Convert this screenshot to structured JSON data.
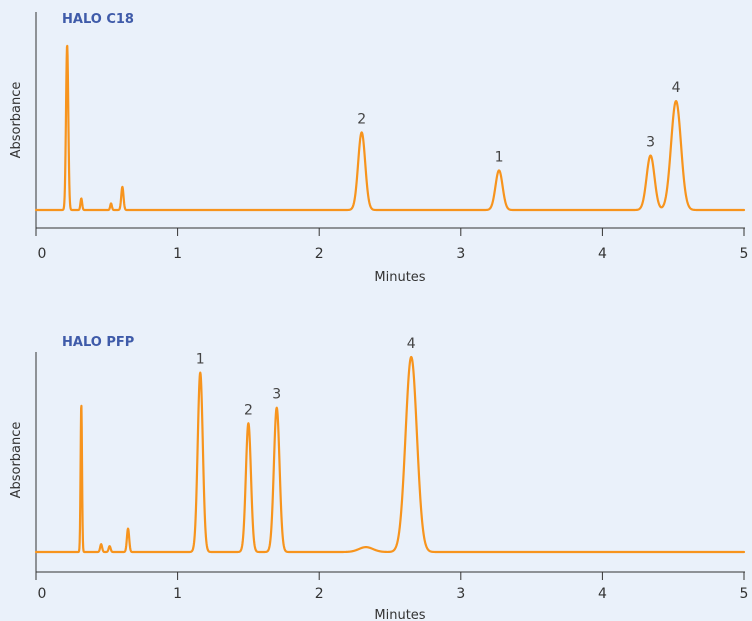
{
  "chart_data": [
    {
      "type": "line",
      "title": "HALO C18",
      "xlabel": "Minutes",
      "ylabel": "Absorbance",
      "xlim": [
        0,
        5
      ],
      "x_ticks": [
        "0",
        "1",
        "2",
        "3",
        "4",
        "5"
      ],
      "y_ticks_shown": false,
      "grid": false,
      "series": [
        {
          "color": "#f7941d",
          "peaks": [
            {
              "t": 0.22,
              "height": 1.0,
              "width": 0.008
            },
            {
              "t": 0.32,
              "height": 0.07,
              "width": 0.006
            },
            {
              "t": 0.53,
              "height": 0.04,
              "width": 0.006
            },
            {
              "t": 0.61,
              "height": 0.14,
              "width": 0.008
            },
            {
              "t": 2.3,
              "height": 0.47,
              "width": 0.025
            },
            {
              "t": 3.27,
              "height": 0.24,
              "width": 0.025
            },
            {
              "t": 4.34,
              "height": 0.33,
              "width": 0.028
            },
            {
              "t": 4.52,
              "height": 0.66,
              "width": 0.035
            }
          ]
        }
      ],
      "peak_labels": [
        {
          "text": "2",
          "t": 2.3,
          "height": 0.47
        },
        {
          "text": "1",
          "t": 3.27,
          "height": 0.24
        },
        {
          "text": "3",
          "t": 4.34,
          "height": 0.33
        },
        {
          "text": "4",
          "t": 4.52,
          "height": 0.66
        }
      ]
    },
    {
      "type": "line",
      "title": "HALO PFP",
      "xlabel": "Minutes",
      "ylabel": "Absorbance",
      "xlim": [
        0,
        5
      ],
      "x_ticks": [
        "0",
        "1",
        "2",
        "3",
        "4",
        "5"
      ],
      "y_ticks_shown": false,
      "grid": false,
      "series": [
        {
          "color": "#f7941d",
          "peaks": [
            {
              "t": 0.32,
              "height": 0.76,
              "width": 0.005
            },
            {
              "t": 0.46,
              "height": 0.04,
              "width": 0.007
            },
            {
              "t": 0.52,
              "height": 0.03,
              "width": 0.007
            },
            {
              "t": 0.65,
              "height": 0.12,
              "width": 0.008
            },
            {
              "t": 1.16,
              "height": 0.92,
              "width": 0.018
            },
            {
              "t": 1.5,
              "height": 0.66,
              "width": 0.018
            },
            {
              "t": 1.7,
              "height": 0.74,
              "width": 0.02
            },
            {
              "t": 2.33,
              "height": 0.025,
              "width": 0.05
            },
            {
              "t": 2.65,
              "height": 1.0,
              "width": 0.04
            }
          ]
        }
      ],
      "peak_labels": [
        {
          "text": "1",
          "t": 1.16,
          "height": 0.92
        },
        {
          "text": "2",
          "t": 1.5,
          "height": 0.66
        },
        {
          "text": "3",
          "t": 1.7,
          "height": 0.74
        },
        {
          "text": "4",
          "t": 2.65,
          "height": 1.0
        }
      ]
    }
  ]
}
